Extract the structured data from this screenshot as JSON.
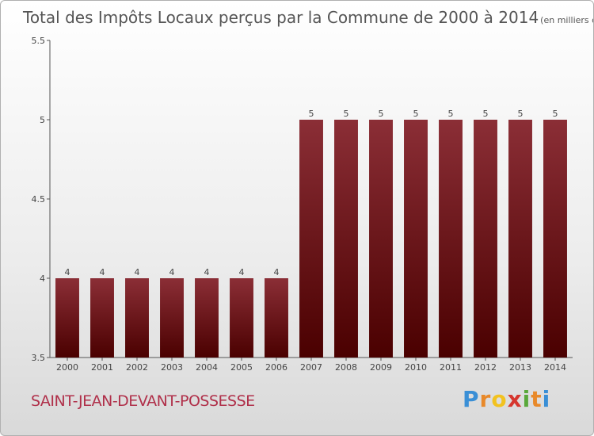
{
  "chart_data": {
    "type": "bar",
    "title": "Total des Impôts Locaux perçus par la Commune de 2000 à 2014",
    "unit": "(en milliers d'€)",
    "categories": [
      "2000",
      "2001",
      "2002",
      "2003",
      "2004",
      "2005",
      "2006",
      "2007",
      "2008",
      "2009",
      "2010",
      "2011",
      "2012",
      "2013",
      "2014"
    ],
    "values": [
      4,
      4,
      4,
      4,
      4,
      4,
      4,
      5,
      5,
      5,
      5,
      5,
      5,
      5,
      5
    ],
    "value_labels": [
      "4",
      "4",
      "4",
      "4",
      "4",
      "4",
      "4",
      "5",
      "5",
      "5",
      "5",
      "5",
      "5",
      "5",
      "5"
    ],
    "ylim": [
      3.5,
      5.5
    ],
    "yticks": [
      "3.5",
      "4",
      "4.5",
      "5",
      "5.5"
    ],
    "ytick_values": [
      3.5,
      4,
      4.5,
      5,
      5.5
    ],
    "bar_color_top": "#8b2e36",
    "bar_color_bottom": "#4a0000",
    "grid": false
  },
  "commune": "SAINT-JEAN-DEVANT-POSSESSE",
  "logo": {
    "letters": [
      "P",
      "r",
      "o",
      "x",
      "i",
      "t",
      "i"
    ],
    "colors": [
      "#3a8fd6",
      "#e8892a",
      "#f2c21f",
      "#d6362e",
      "#5aa83a",
      "#e8892a",
      "#3a8fd6"
    ]
  }
}
